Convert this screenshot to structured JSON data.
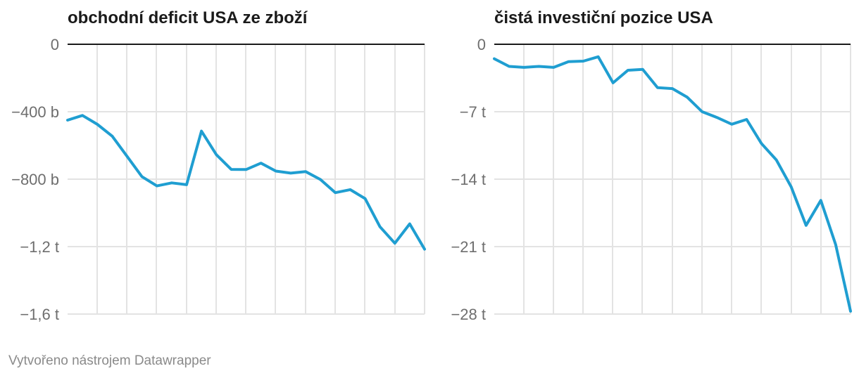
{
  "footer": "Vytvořeno nástrojem Datawrapper",
  "colors": {
    "line": "#1f9ed1",
    "grid": "#e3e3e3",
    "baseline": "#1a1a1a",
    "label": "#6e6e6e"
  },
  "chart_data": [
    {
      "type": "line",
      "title": "obchodní deficit USA ze zboží",
      "ylim": [
        -1600,
        0
      ],
      "ytick_values": [
        0,
        -400,
        -800,
        -1200,
        -1600
      ],
      "ytick_labels": [
        "0",
        "−400 b",
        "−800 b",
        "−1,2 t",
        "−1,6 t"
      ],
      "grid": true,
      "series": [
        {
          "values": [
            -450,
            -422,
            -475,
            -545,
            -665,
            -785,
            -840,
            -822,
            -833,
            -515,
            -655,
            -742,
            -743,
            -705,
            -752,
            -764,
            -755,
            -802,
            -880,
            -862,
            -915,
            -1082,
            -1180,
            -1065,
            -1215
          ]
        }
      ]
    },
    {
      "type": "line",
      "title": "čistá investiční pozice USA",
      "ylim": [
        -28,
        0
      ],
      "ytick_values": [
        0,
        -7,
        -14,
        -21,
        -28
      ],
      "ytick_labels": [
        "0",
        "−7 t",
        "−14 t",
        "−21 t",
        "−28 t"
      ],
      "grid": true,
      "series": [
        {
          "values": [
            -1.5,
            -2.3,
            -2.4,
            -2.3,
            -2.4,
            -1.8,
            -1.75,
            -1.3,
            -4.0,
            -2.7,
            -2.6,
            -4.5,
            -4.6,
            -5.5,
            -7.0,
            -7.6,
            -8.3,
            -7.8,
            -10.3,
            -12.0,
            -14.8,
            -18.8,
            -16.2,
            -20.8,
            -27.7
          ]
        }
      ]
    }
  ]
}
